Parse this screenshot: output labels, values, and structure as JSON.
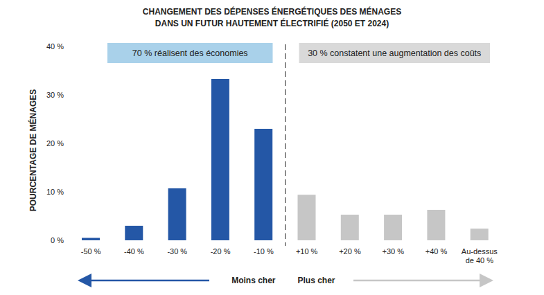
{
  "chart_data": {
    "type": "bar",
    "title": "CHANGEMENT DES DÉPENSES ÉNERGÉTIQUES DES MÉNAGES\nDANS UN FUTUR HAUTEMENT ÉLECTRIFIÉ (2050 ET 2024)",
    "y_label": "POURCENTAGE DE MÉNAGES",
    "categories": [
      "-50 %",
      "-40 %",
      "-30 %",
      "-20 %",
      "-10 %",
      "+10 %",
      "+20 %",
      "+30 %",
      "+40 %",
      "Au-dessus de 40 %"
    ],
    "values": [
      0.5,
      3.0,
      10.7,
      33.3,
      23.0,
      9.4,
      5.3,
      5.3,
      6.3,
      2.4
    ],
    "colors": [
      "#2457a6",
      "#2457a6",
      "#2457a6",
      "#2457a6",
      "#2457a6",
      "#c6c6c6",
      "#c6c6c6",
      "#c6c6c6",
      "#c6c6c6",
      "#c6c6c6"
    ],
    "ylim": [
      0,
      40
    ],
    "yticks": [
      {
        "value": 0,
        "label": "0 %"
      },
      {
        "value": 10,
        "label": "10 %"
      },
      {
        "value": 20,
        "label": "20 %"
      },
      {
        "value": 30,
        "label": "30 %"
      },
      {
        "value": 40,
        "label": "40 %"
      }
    ],
    "grid": false,
    "annotations": [
      "70 % réalisent des économies",
      "30 % constatent une augmentation des coûts"
    ],
    "direction_labels": [
      "Moins cher",
      "Plus cher"
    ]
  }
}
